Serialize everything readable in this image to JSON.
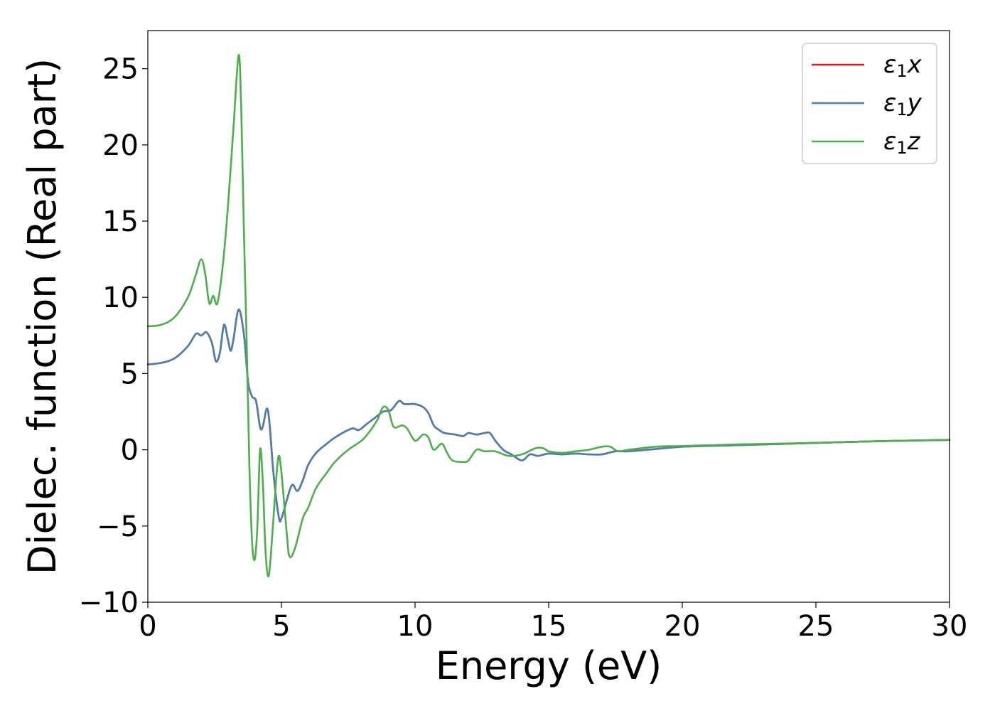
{
  "chart_data": {
    "type": "line",
    "title": "",
    "xlabel": "Energy (eV)",
    "ylabel": "Dielec. function (Real part)",
    "xlim": [
      0,
      30
    ],
    "ylim": [
      -10,
      27.5
    ],
    "xticks": [
      0,
      5,
      10,
      15,
      20,
      25,
      30
    ],
    "xtick_labels": [
      "0",
      "5",
      "10",
      "15",
      "20",
      "25",
      "30"
    ],
    "yticks": [
      -10,
      -5,
      0,
      5,
      10,
      15,
      20,
      25
    ],
    "ytick_labels": [
      "−10",
      "−5",
      "0",
      "5",
      "10",
      "15",
      "20",
      "25"
    ],
    "grid": false,
    "legend_position": "top-right",
    "series": [
      {
        "name": "ε₁x",
        "label_main": "ε",
        "label_sub": "1",
        "label_tail": "x",
        "color": "#e41a1c",
        "points": [
          [
            0,
            5.6
          ],
          [
            0.5,
            5.7
          ],
          [
            1.0,
            6.0
          ],
          [
            1.5,
            6.8
          ],
          [
            1.8,
            7.6
          ],
          [
            2.0,
            7.5
          ],
          [
            2.2,
            7.7
          ],
          [
            2.4,
            7.0
          ],
          [
            2.55,
            5.8
          ],
          [
            2.7,
            6.4
          ],
          [
            2.85,
            8.2
          ],
          [
            3.0,
            7.2
          ],
          [
            3.1,
            6.5
          ],
          [
            3.2,
            7.2
          ],
          [
            3.4,
            9.2
          ],
          [
            3.6,
            7.5
          ],
          [
            3.75,
            4.5
          ],
          [
            3.9,
            3.5
          ],
          [
            4.05,
            3.2
          ],
          [
            4.2,
            1.5
          ],
          [
            4.3,
            1.5
          ],
          [
            4.45,
            2.7
          ],
          [
            4.55,
            1.8
          ],
          [
            4.7,
            -1.5
          ],
          [
            4.9,
            -4.4
          ],
          [
            5.0,
            -4.5
          ],
          [
            5.2,
            -3.3
          ],
          [
            5.4,
            -2.3
          ],
          [
            5.6,
            -2.7
          ],
          [
            5.8,
            -2.0
          ],
          [
            6.0,
            -1.0
          ],
          [
            6.3,
            -0.2
          ],
          [
            6.7,
            0.4
          ],
          [
            7.0,
            0.8
          ],
          [
            7.5,
            1.3
          ],
          [
            7.7,
            1.4
          ],
          [
            7.9,
            1.3
          ],
          [
            8.2,
            1.7
          ],
          [
            8.5,
            2.1
          ],
          [
            8.8,
            2.5
          ],
          [
            9.1,
            2.6
          ],
          [
            9.4,
            3.2
          ],
          [
            9.6,
            3.0
          ],
          [
            10.0,
            3.0
          ],
          [
            10.3,
            2.8
          ],
          [
            10.5,
            2.4
          ],
          [
            10.7,
            1.6
          ],
          [
            10.9,
            1.3
          ],
          [
            11.1,
            1.1
          ],
          [
            11.5,
            1.0
          ],
          [
            11.8,
            0.9
          ],
          [
            12.0,
            1.1
          ],
          [
            12.3,
            1.0
          ],
          [
            12.6,
            1.1
          ],
          [
            12.8,
            1.1
          ],
          [
            13.0,
            0.6
          ],
          [
            13.3,
            0.0
          ],
          [
            13.6,
            -0.3
          ],
          [
            14.0,
            -0.7
          ],
          [
            14.3,
            -0.3
          ],
          [
            14.6,
            -0.4
          ],
          [
            15.0,
            -0.25
          ],
          [
            15.5,
            -0.3
          ],
          [
            16.0,
            -0.25
          ],
          [
            16.5,
            -0.3
          ],
          [
            17.0,
            -0.3
          ],
          [
            17.5,
            -0.1
          ],
          [
            18.0,
            -0.1
          ],
          [
            19.0,
            0.05
          ],
          [
            20.0,
            0.2
          ],
          [
            22.0,
            0.3
          ],
          [
            25.0,
            0.45
          ],
          [
            27.0,
            0.55
          ],
          [
            30.0,
            0.65
          ]
        ]
      },
      {
        "name": "ε₁y",
        "label_main": "ε",
        "label_sub": "1",
        "label_tail": "y",
        "color": "#4a7fb5",
        "points": [
          [
            0,
            5.6
          ],
          [
            0.5,
            5.7
          ],
          [
            1.0,
            6.0
          ],
          [
            1.5,
            6.8
          ],
          [
            1.8,
            7.6
          ],
          [
            2.0,
            7.5
          ],
          [
            2.2,
            7.7
          ],
          [
            2.4,
            7.0
          ],
          [
            2.55,
            5.8
          ],
          [
            2.7,
            6.4
          ],
          [
            2.85,
            8.2
          ],
          [
            3.0,
            7.2
          ],
          [
            3.1,
            6.5
          ],
          [
            3.2,
            7.2
          ],
          [
            3.4,
            9.2
          ],
          [
            3.6,
            7.5
          ],
          [
            3.75,
            4.5
          ],
          [
            3.9,
            3.5
          ],
          [
            4.05,
            3.2
          ],
          [
            4.2,
            1.5
          ],
          [
            4.3,
            1.5
          ],
          [
            4.45,
            2.7
          ],
          [
            4.55,
            1.8
          ],
          [
            4.7,
            -1.5
          ],
          [
            4.9,
            -4.4
          ],
          [
            5.0,
            -4.5
          ],
          [
            5.2,
            -3.3
          ],
          [
            5.4,
            -2.3
          ],
          [
            5.6,
            -2.7
          ],
          [
            5.8,
            -2.0
          ],
          [
            6.0,
            -1.0
          ],
          [
            6.3,
            -0.2
          ],
          [
            6.7,
            0.4
          ],
          [
            7.0,
            0.8
          ],
          [
            7.5,
            1.3
          ],
          [
            7.7,
            1.4
          ],
          [
            7.9,
            1.3
          ],
          [
            8.2,
            1.7
          ],
          [
            8.5,
            2.1
          ],
          [
            8.8,
            2.5
          ],
          [
            9.1,
            2.6
          ],
          [
            9.4,
            3.2
          ],
          [
            9.6,
            3.0
          ],
          [
            10.0,
            3.0
          ],
          [
            10.3,
            2.8
          ],
          [
            10.5,
            2.4
          ],
          [
            10.7,
            1.6
          ],
          [
            10.9,
            1.3
          ],
          [
            11.1,
            1.1
          ],
          [
            11.5,
            1.0
          ],
          [
            11.8,
            0.9
          ],
          [
            12.0,
            1.1
          ],
          [
            12.3,
            1.0
          ],
          [
            12.6,
            1.1
          ],
          [
            12.8,
            1.1
          ],
          [
            13.0,
            0.6
          ],
          [
            13.3,
            0.0
          ],
          [
            13.6,
            -0.3
          ],
          [
            14.0,
            -0.7
          ],
          [
            14.3,
            -0.3
          ],
          [
            14.6,
            -0.4
          ],
          [
            15.0,
            -0.25
          ],
          [
            15.5,
            -0.3
          ],
          [
            16.0,
            -0.25
          ],
          [
            16.5,
            -0.3
          ],
          [
            17.0,
            -0.3
          ],
          [
            17.5,
            -0.1
          ],
          [
            18.0,
            -0.1
          ],
          [
            19.0,
            0.05
          ],
          [
            20.0,
            0.2
          ],
          [
            22.0,
            0.3
          ],
          [
            25.0,
            0.45
          ],
          [
            27.0,
            0.55
          ],
          [
            30.0,
            0.65
          ]
        ]
      },
      {
        "name": "ε₁z",
        "label_main": "ε",
        "label_sub": "1",
        "label_tail": "z",
        "color": "#4daf4a",
        "points": [
          [
            0,
            8.1
          ],
          [
            0.5,
            8.2
          ],
          [
            1.0,
            8.7
          ],
          [
            1.5,
            10.0
          ],
          [
            1.8,
            11.5
          ],
          [
            2.0,
            12.5
          ],
          [
            2.15,
            11.5
          ],
          [
            2.3,
            9.6
          ],
          [
            2.45,
            10.1
          ],
          [
            2.6,
            9.6
          ],
          [
            2.8,
            12.0
          ],
          [
            3.0,
            16.0
          ],
          [
            3.2,
            21.0
          ],
          [
            3.4,
            25.9
          ],
          [
            3.5,
            22.0
          ],
          [
            3.6,
            14.0
          ],
          [
            3.7,
            7.0
          ],
          [
            3.8,
            -1.0
          ],
          [
            3.9,
            -6.0
          ],
          [
            4.0,
            -7.2
          ],
          [
            4.1,
            -5.0
          ],
          [
            4.2,
            0.0
          ],
          [
            4.3,
            -2.0
          ],
          [
            4.4,
            -6.5
          ],
          [
            4.5,
            -8.3
          ],
          [
            4.6,
            -7.0
          ],
          [
            4.8,
            -2.0
          ],
          [
            4.9,
            -0.4
          ],
          [
            5.0,
            -1.5
          ],
          [
            5.2,
            -5.5
          ],
          [
            5.3,
            -7.0
          ],
          [
            5.5,
            -6.5
          ],
          [
            5.8,
            -4.5
          ],
          [
            6.0,
            -3.8
          ],
          [
            6.3,
            -2.5
          ],
          [
            6.7,
            -1.5
          ],
          [
            7.0,
            -0.8
          ],
          [
            7.5,
            0.0
          ],
          [
            8.0,
            0.6
          ],
          [
            8.3,
            1.2
          ],
          [
            8.6,
            2.0
          ],
          [
            8.8,
            2.8
          ],
          [
            9.0,
            2.6
          ],
          [
            9.2,
            1.5
          ],
          [
            9.5,
            1.6
          ],
          [
            9.7,
            1.4
          ],
          [
            10.0,
            0.6
          ],
          [
            10.3,
            1.0
          ],
          [
            10.5,
            0.8
          ],
          [
            10.7,
            0.0
          ],
          [
            11.0,
            0.4
          ],
          [
            11.2,
            -0.2
          ],
          [
            11.4,
            -0.7
          ],
          [
            11.8,
            -0.8
          ],
          [
            12.0,
            -0.7
          ],
          [
            12.3,
            0.0
          ],
          [
            12.6,
            -0.1
          ],
          [
            13.0,
            -0.1
          ],
          [
            13.5,
            -0.4
          ],
          [
            14.0,
            -0.3
          ],
          [
            14.5,
            0.1
          ],
          [
            14.8,
            0.1
          ],
          [
            15.0,
            -0.1
          ],
          [
            15.5,
            -0.2
          ],
          [
            16.0,
            -0.1
          ],
          [
            16.5,
            0.0
          ],
          [
            17.0,
            0.2
          ],
          [
            17.3,
            0.2
          ],
          [
            17.6,
            -0.1
          ],
          [
            18.0,
            0.0
          ],
          [
            19.0,
            0.2
          ],
          [
            20.0,
            0.25
          ],
          [
            22.0,
            0.35
          ],
          [
            25.0,
            0.45
          ],
          [
            27.0,
            0.55
          ],
          [
            30.0,
            0.65
          ]
        ]
      }
    ]
  }
}
